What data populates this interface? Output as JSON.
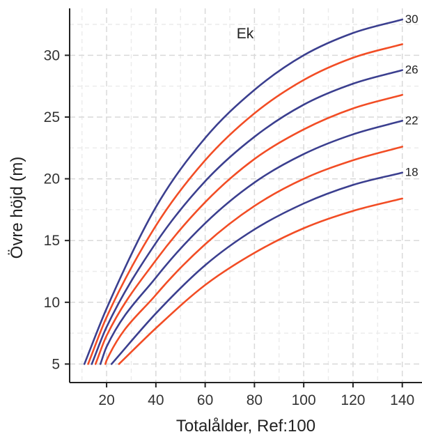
{
  "chart_data": {
    "type": "line",
    "title": "Ek",
    "xlabel": "Totalålder, Ref:100",
    "ylabel": "Övre höjd (m)",
    "xlim": [
      5,
      148
    ],
    "ylim": [
      3.5,
      33.8
    ],
    "x_ticks": [
      20,
      40,
      60,
      80,
      100,
      120,
      140
    ],
    "y_ticks": [
      5,
      10,
      15,
      20,
      25,
      30
    ],
    "grid": true,
    "colors": {
      "blue": "#3b3f8f",
      "red": "#f24d25",
      "grid_major": "#d9d9d9",
      "grid_minor": "#ececec",
      "axis": "#222222"
    },
    "series": [
      {
        "label": "30",
        "color": "blue",
        "x": [
          11,
          20,
          40,
          60,
          80,
          100,
          120,
          140
        ],
        "y": [
          5,
          9.5,
          17.7,
          23.3,
          27.2,
          30.0,
          31.8,
          32.9
        ]
      },
      {
        "label": "",
        "color": "red",
        "x": [
          12.5,
          20,
          40,
          60,
          80,
          100,
          120,
          140
        ],
        "y": [
          5,
          8.8,
          16.2,
          21.5,
          25.3,
          28.0,
          29.8,
          30.9
        ]
      },
      {
        "label": "26",
        "color": "blue",
        "x": [
          14,
          20,
          40,
          60,
          80,
          100,
          120,
          140
        ],
        "y": [
          5,
          8.0,
          14.8,
          19.8,
          23.4,
          26.0,
          27.7,
          28.8
        ]
      },
      {
        "label": "",
        "color": "red",
        "x": [
          15.5,
          20,
          40,
          60,
          80,
          100,
          120,
          140
        ],
        "y": [
          5,
          7.3,
          13.4,
          18.1,
          21.6,
          24.0,
          25.7,
          26.8
        ]
      },
      {
        "label": "22",
        "color": "blue",
        "x": [
          17.5,
          20,
          40,
          60,
          80,
          100,
          120,
          140
        ],
        "y": [
          5,
          6.4,
          12.0,
          16.4,
          19.7,
          22.0,
          23.6,
          24.7
        ]
      },
      {
        "label": "",
        "color": "red",
        "x": [
          19.5,
          20,
          40,
          60,
          80,
          100,
          120,
          140
        ],
        "y": [
          5,
          5.3,
          10.6,
          14.7,
          17.8,
          20.0,
          21.5,
          22.6
        ]
      },
      {
        "label": "18",
        "color": "blue",
        "x": [
          22,
          40,
          60,
          80,
          100,
          120,
          140
        ],
        "y": [
          5,
          9.1,
          13.0,
          15.9,
          18.0,
          19.5,
          20.5
        ]
      },
      {
        "label": "",
        "color": "red",
        "x": [
          25,
          40,
          60,
          80,
          100,
          120,
          140
        ],
        "y": [
          5,
          7.9,
          11.4,
          14.0,
          16.0,
          17.4,
          18.4
        ]
      }
    ]
  }
}
